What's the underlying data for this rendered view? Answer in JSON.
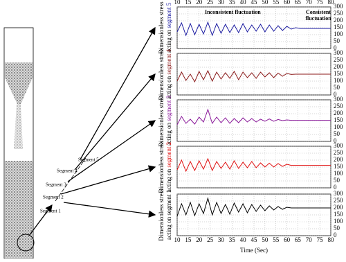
{
  "chart_data": [
    {
      "type": "line",
      "ylabel": [
        "Dimensionless stress",
        "acting on",
        "segment 5"
      ],
      "ylabel_color": "#1a1aa0",
      "color": "#1a1aa0",
      "annotations": [
        "Inconsistent fluctuation",
        "Consistent fluctuation"
      ],
      "x_tick_labels": "top",
      "x": [
        10,
        12,
        14,
        16,
        18,
        20,
        22,
        24,
        26,
        28,
        30,
        32,
        34,
        36,
        38,
        40,
        42,
        44,
        46,
        48,
        50,
        52,
        54,
        56,
        58,
        60,
        62,
        64,
        66,
        68,
        70,
        72,
        74,
        76,
        78,
        80
      ],
      "values": [
        120,
        185,
        95,
        180,
        100,
        175,
        105,
        190,
        95,
        180,
        110,
        175,
        115,
        170,
        115,
        180,
        120,
        170,
        125,
        175,
        120,
        170,
        125,
        165,
        130,
        160,
        140,
        150,
        145,
        145,
        145,
        145,
        145,
        145,
        145,
        145
      ],
      "xlim": [
        10,
        80
      ],
      "xticks": [
        10,
        15,
        20,
        25,
        30,
        35,
        40,
        45,
        50,
        55,
        60,
        65,
        70,
        75,
        80
      ],
      "ylim": [
        0,
        300
      ],
      "yticks": [
        0,
        50,
        100,
        150,
        200,
        250,
        300
      ],
      "grid": true
    },
    {
      "type": "line",
      "ylabel": [
        "Dimensionless stress",
        "acting on",
        "segment 4"
      ],
      "ylabel_color": "#8b1a1a",
      "color": "#8b1a1a",
      "x_tick_labels": "none",
      "x": [
        10,
        12,
        14,
        16,
        18,
        20,
        22,
        24,
        26,
        28,
        30,
        32,
        34,
        36,
        38,
        40,
        42,
        44,
        46,
        48,
        50,
        52,
        54,
        56,
        58,
        60,
        62,
        64,
        66,
        68,
        70,
        72,
        74,
        76,
        78,
        80
      ],
      "values": [
        100,
        165,
        105,
        150,
        95,
        170,
        110,
        175,
        100,
        165,
        115,
        160,
        120,
        170,
        110,
        165,
        125,
        160,
        120,
        165,
        130,
        160,
        125,
        158,
        135,
        155,
        148,
        150,
        150,
        150,
        150,
        150,
        150,
        150,
        150,
        150
      ],
      "xlim": [
        10,
        80
      ],
      "xticks": [
        10,
        15,
        20,
        25,
        30,
        35,
        40,
        45,
        50,
        55,
        60,
        65,
        70,
        75,
        80
      ],
      "ylim": [
        0,
        300
      ],
      "yticks": [
        0,
        50,
        100,
        150,
        200,
        250,
        300
      ],
      "grid": true
    },
    {
      "type": "line",
      "ylabel": [
        "Dimensionless stress",
        "acting on",
        "segment 3"
      ],
      "ylabel_color": "#8b1a9b",
      "color": "#8b1a9b",
      "x_tick_labels": "none",
      "x": [
        10,
        12,
        14,
        16,
        18,
        20,
        22,
        24,
        26,
        28,
        30,
        32,
        34,
        36,
        38,
        40,
        42,
        44,
        46,
        48,
        50,
        52,
        54,
        56,
        58,
        60,
        62,
        64,
        66,
        68,
        70,
        72,
        74,
        76,
        78,
        80
      ],
      "values": [
        120,
        180,
        130,
        160,
        125,
        175,
        140,
        230,
        130,
        175,
        135,
        170,
        130,
        165,
        135,
        170,
        140,
        165,
        140,
        160,
        145,
        162,
        145,
        158,
        150,
        155,
        152,
        152,
        152,
        152,
        152,
        152,
        152,
        152,
        152,
        152
      ],
      "xlim": [
        10,
        80
      ],
      "xticks": [
        10,
        15,
        20,
        25,
        30,
        35,
        40,
        45,
        50,
        55,
        60,
        65,
        70,
        75,
        80
      ],
      "ylim": [
        0,
        300
      ],
      "yticks": [
        0,
        50,
        100,
        150,
        200,
        250,
        300
      ],
      "grid": true
    },
    {
      "type": "line",
      "ylabel": [
        "Dimensionless stress",
        "acting on",
        "segment 2"
      ],
      "ylabel_color": "#e01010",
      "color": "#e01010",
      "x_tick_labels": "none",
      "x": [
        10,
        12,
        14,
        16,
        18,
        20,
        22,
        24,
        26,
        28,
        30,
        32,
        34,
        36,
        38,
        40,
        42,
        44,
        46,
        48,
        50,
        52,
        54,
        56,
        58,
        60,
        62,
        64,
        66,
        68,
        70,
        72,
        74,
        76,
        78,
        80
      ],
      "values": [
        130,
        200,
        120,
        190,
        125,
        195,
        135,
        210,
        125,
        190,
        140,
        185,
        135,
        195,
        140,
        185,
        145,
        190,
        145,
        180,
        150,
        178,
        150,
        175,
        155,
        170,
        162,
        162,
        162,
        162,
        162,
        162,
        162,
        162,
        162,
        162
      ],
      "xlim": [
        10,
        80
      ],
      "xticks": [
        10,
        15,
        20,
        25,
        30,
        35,
        40,
        45,
        50,
        55,
        60,
        65,
        70,
        75,
        80
      ],
      "ylim": [
        0,
        300
      ],
      "yticks": [
        0,
        50,
        100,
        150,
        200,
        250,
        300
      ],
      "grid": true
    },
    {
      "type": "line",
      "ylabel": [
        "Dimensionless stress",
        "acting on",
        "segment 1"
      ],
      "ylabel_color": "#000000",
      "color": "#000000",
      "x_tick_labels": "bottom",
      "xlabel": "Time (Sec)",
      "x": [
        10,
        12,
        14,
        16,
        18,
        20,
        22,
        24,
        26,
        28,
        30,
        32,
        34,
        36,
        38,
        40,
        42,
        44,
        46,
        48,
        50,
        52,
        54,
        56,
        58,
        60,
        62,
        64,
        66,
        68,
        70,
        72,
        74,
        76,
        78,
        80
      ],
      "values": [
        140,
        230,
        150,
        240,
        145,
        230,
        160,
        270,
        150,
        240,
        160,
        225,
        155,
        235,
        170,
        230,
        165,
        225,
        175,
        220,
        180,
        215,
        185,
        210,
        190,
        205,
        200,
        200,
        200,
        200,
        200,
        200,
        200,
        200,
        200,
        200
      ],
      "xlim": [
        10,
        80
      ],
      "xticks": [
        10,
        15,
        20,
        25,
        30,
        35,
        40,
        45,
        50,
        55,
        60,
        65,
        70,
        75,
        80
      ],
      "ylim": [
        0,
        300
      ],
      "yticks": [
        0,
        50,
        100,
        150,
        200,
        250,
        300
      ],
      "grid": true
    }
  ],
  "segments": [
    "Segment 1",
    "Segment 2",
    "Segment 3",
    "Segment 4",
    "Segment 5"
  ]
}
